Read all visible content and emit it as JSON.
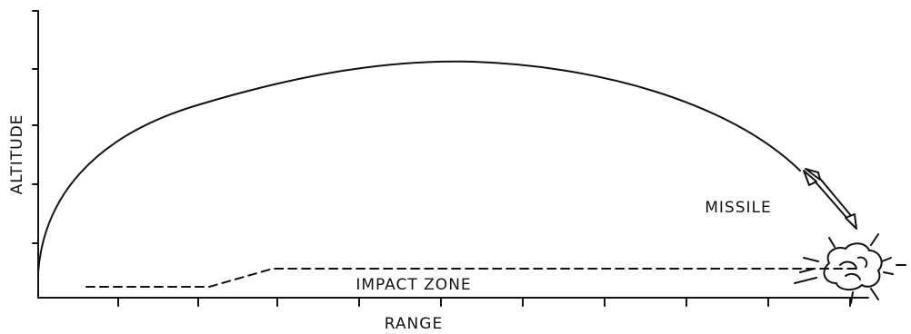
{
  "axes": {
    "y_label": "ALTITUDE",
    "x_label": "RANGE"
  },
  "annotations": {
    "missile": "MISSILE",
    "impact_zone": "IMPACT ZONE"
  }
}
